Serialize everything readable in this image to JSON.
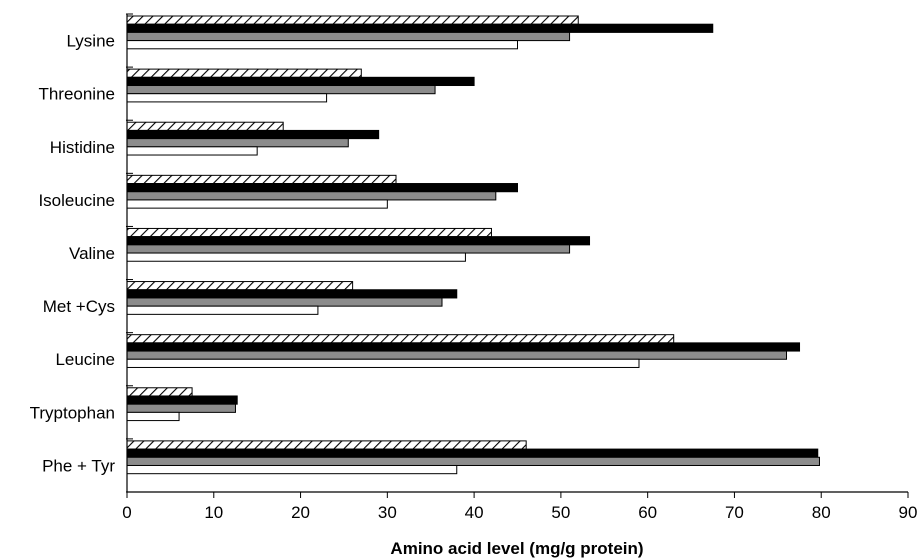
{
  "chart_data": {
    "type": "bar",
    "orientation": "horizontal",
    "title": "",
    "xlabel": "Amino acid level (mg/g protein)",
    "ylabel": "",
    "xlim": [
      0,
      90
    ],
    "xticks": [
      0,
      10,
      20,
      30,
      40,
      50,
      60,
      70,
      80,
      90
    ],
    "grid": false,
    "legend": "none",
    "categories": [
      "Lysine",
      "Threonine",
      "Histidine",
      "Isoleucine",
      "Valine",
      "Met +Cys",
      "Leucine",
      "Tryptophan",
      "Phe + Tyr"
    ],
    "series": [
      {
        "fill": "hatched",
        "values": [
          52,
          27,
          18,
          31,
          42,
          26,
          63,
          7.5,
          46
        ]
      },
      {
        "fill": "#000000",
        "values": [
          67.5,
          40,
          29,
          45,
          53.3,
          38,
          77.5,
          12.7,
          79.6
        ]
      },
      {
        "fill": "#8c8c8c",
        "values": [
          51,
          35.5,
          25.5,
          42.5,
          51,
          36.3,
          76,
          12.5,
          79.8
        ]
      },
      {
        "fill": "#ffffff",
        "values": [
          45,
          23,
          15,
          30,
          39,
          22,
          59,
          6,
          38
        ]
      }
    ]
  }
}
